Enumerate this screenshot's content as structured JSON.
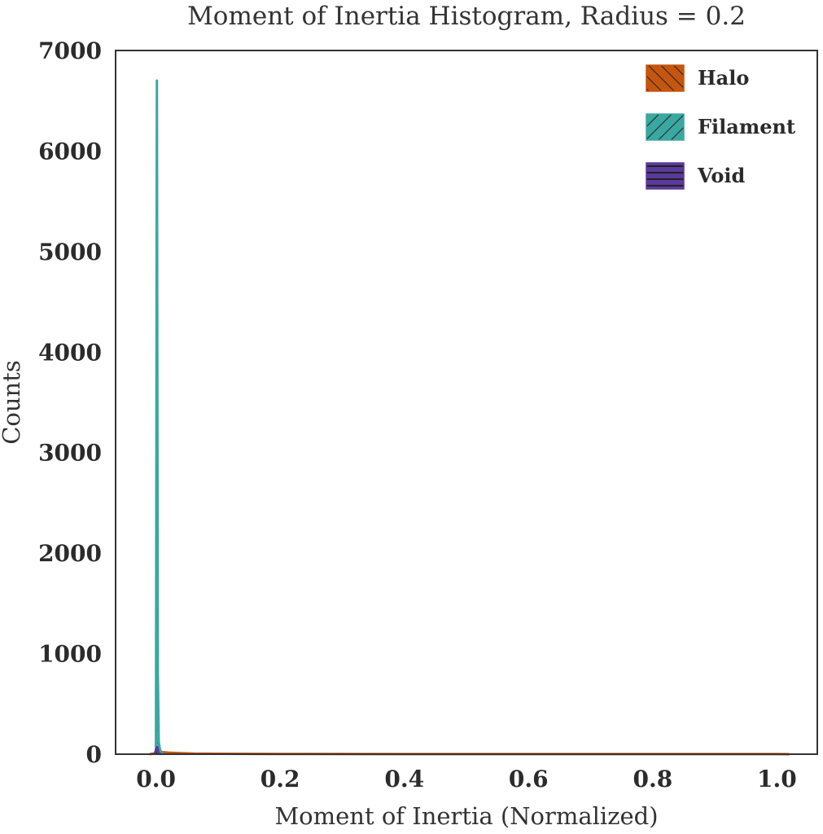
{
  "chart_data": {
    "type": "histogram",
    "title": "Moment of Inertia Histogram, Radius = 0.2",
    "xlabel": "Moment of Inertia (Normalized)",
    "ylabel": "Counts",
    "xlim": [
      -0.065,
      1.065
    ],
    "ylim": [
      0,
      7000
    ],
    "xticks": [
      0.0,
      0.2,
      0.4,
      0.6,
      0.8,
      1.0
    ],
    "xtick_labels": [
      "0.0",
      "0.2",
      "0.4",
      "0.6",
      "0.8",
      "1.0"
    ],
    "yticks": [
      0,
      1000,
      2000,
      3000,
      4000,
      5000,
      6000,
      7000
    ],
    "ytick_labels": [
      "0",
      "1000",
      "2000",
      "3000",
      "4000",
      "5000",
      "6000",
      "7000"
    ],
    "grid": false,
    "legend_position": "top-right",
    "series": [
      {
        "name": "Halo",
        "color": "#c5560f",
        "hatch": "diagonal-forward",
        "x": [
          -0.01,
          0.0,
          0.005,
          0.01,
          0.02,
          0.04,
          0.06,
          0.1,
          0.2,
          0.4,
          0.6,
          0.8,
          1.0,
          1.02
        ],
        "y": [
          0,
          10,
          25,
          20,
          15,
          10,
          6,
          4,
          2,
          1,
          1,
          1,
          1,
          0
        ]
      },
      {
        "name": "Filament",
        "color": "#3aa8a0",
        "hatch": "diagonal-back",
        "x": [
          -0.003,
          0.0,
          0.0015,
          0.003,
          0.0045,
          0.006,
          0.008,
          0.012
        ],
        "y": [
          0,
          30,
          6700,
          800,
          120,
          60,
          20,
          0
        ]
      },
      {
        "name": "Void",
        "color": "#5a3a9a",
        "hatch": "horizontal",
        "x": [
          -0.002,
          0.0,
          0.002,
          0.004,
          0.008
        ],
        "y": [
          0,
          40,
          70,
          10,
          0
        ]
      }
    ]
  }
}
